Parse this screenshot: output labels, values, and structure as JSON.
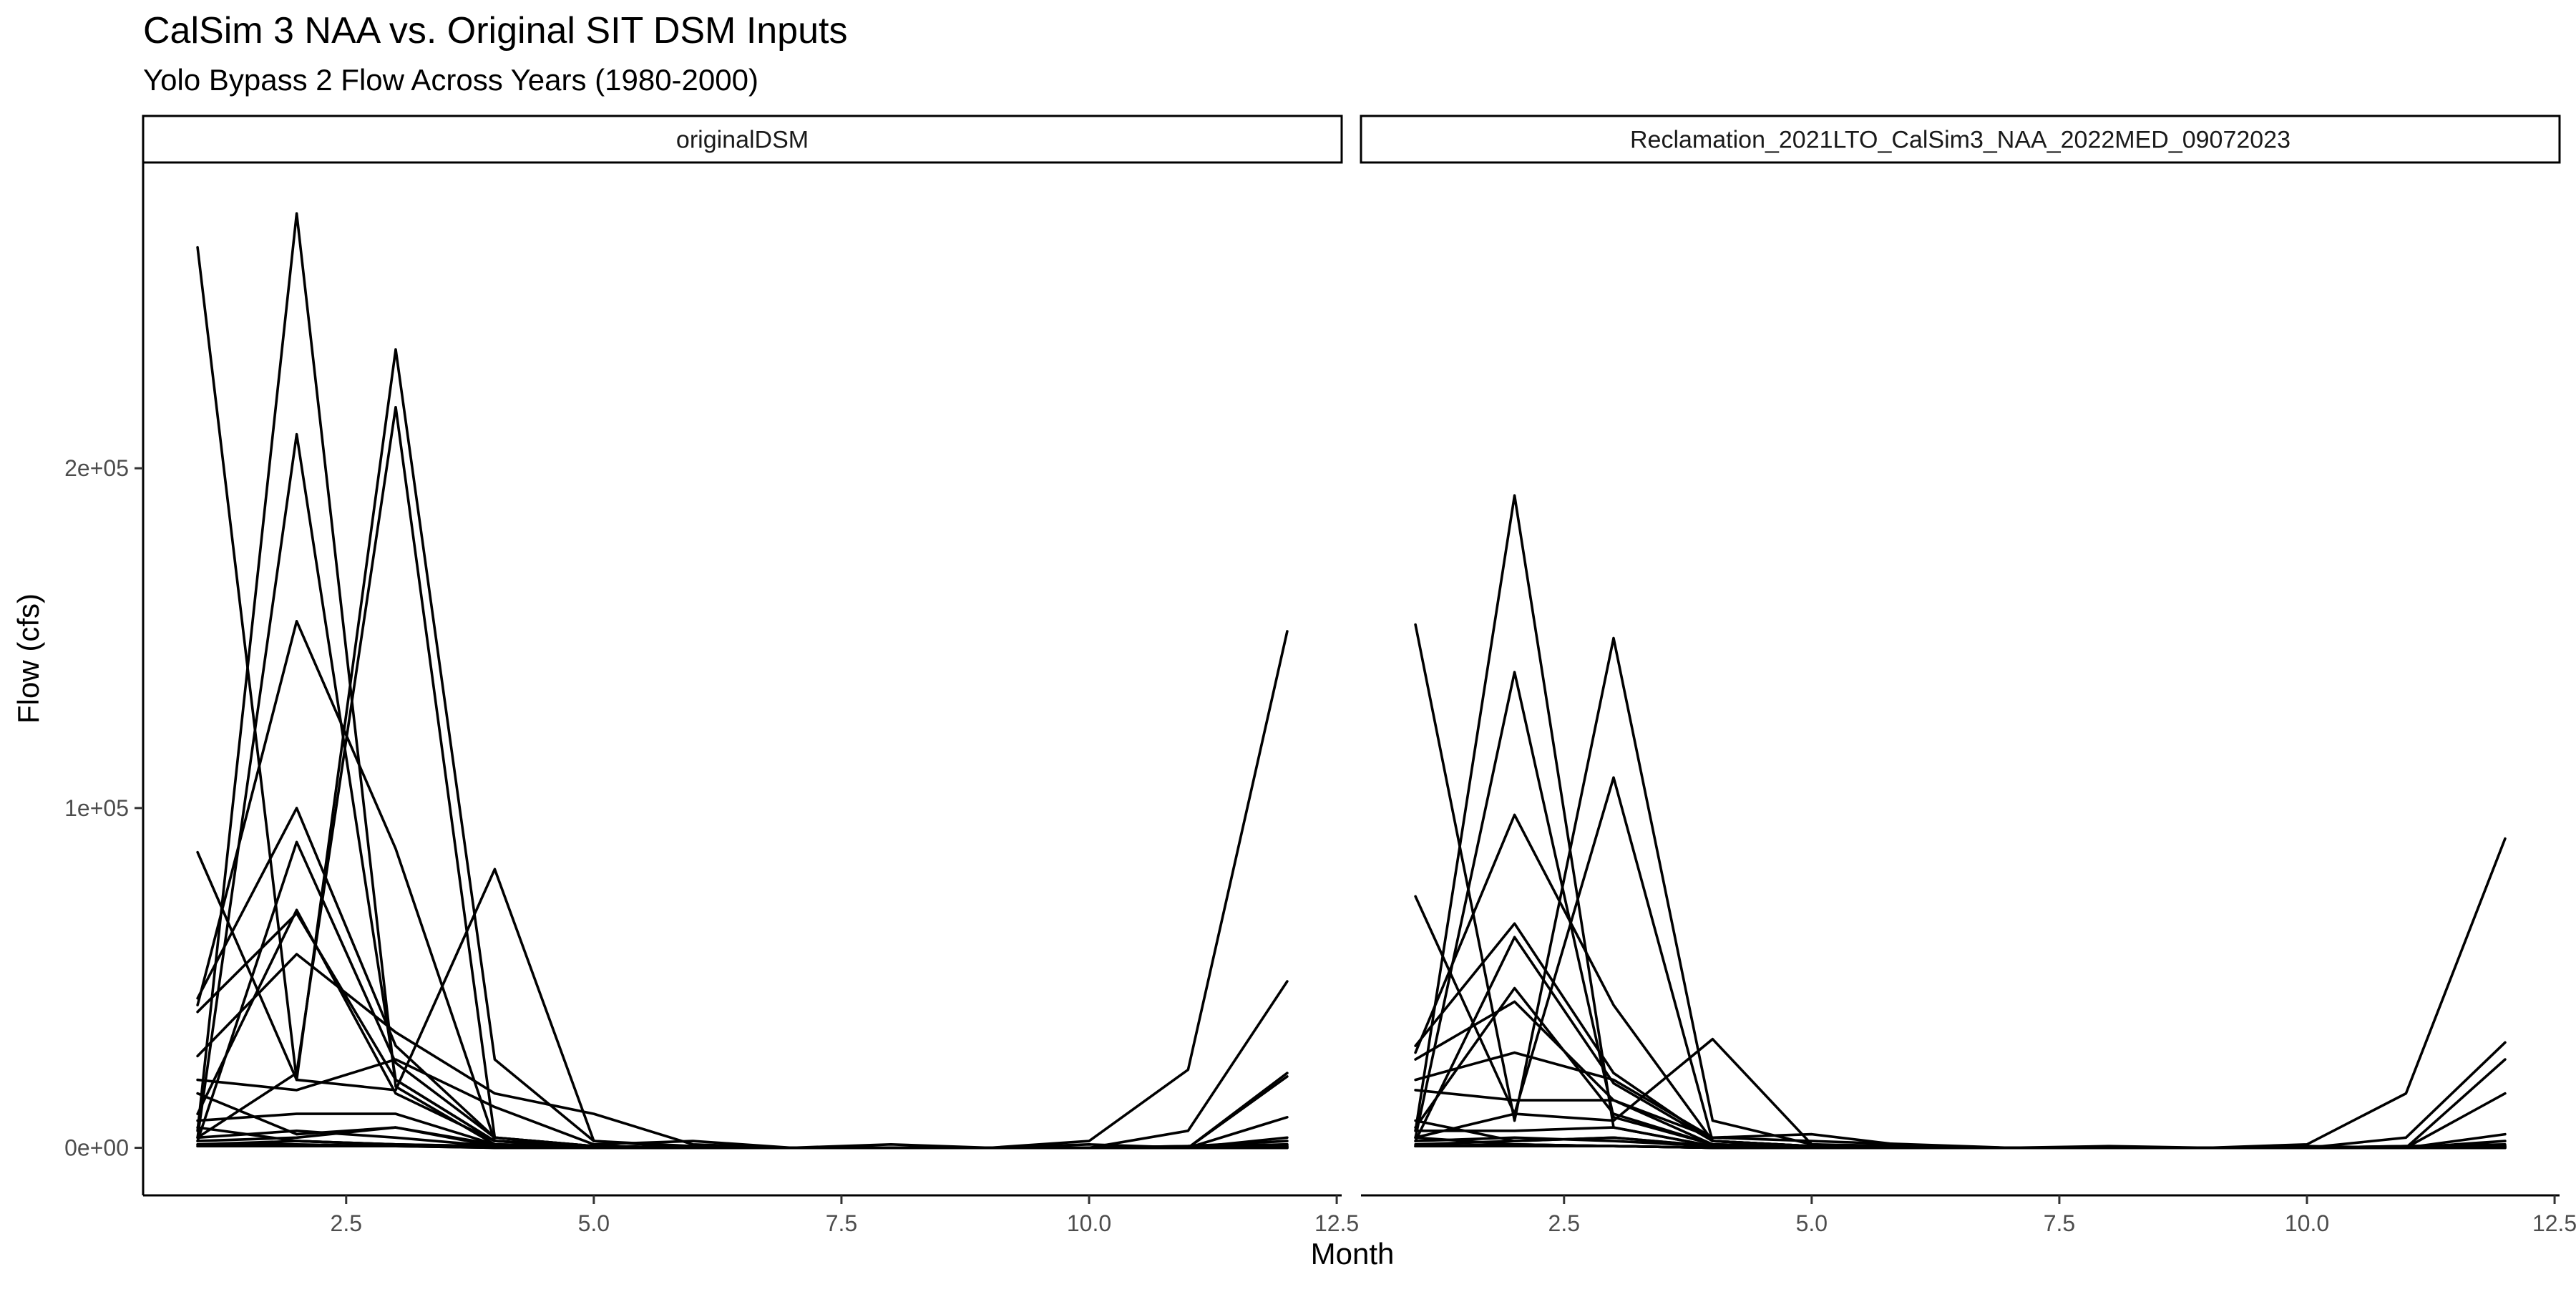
{
  "chart_data": {
    "type": "line",
    "title": "CalSim 3 NAA vs. Original SIT DSM Inputs",
    "subtitle": "Yolo Bypass 2 Flow Across Years (1980-2000)",
    "xlabel": "Month",
    "ylabel": "Flow (cfs)",
    "xlim": [
      0.45,
      12.55
    ],
    "ylim": [
      -14000,
      290000
    ],
    "x_ticks": [
      2.5,
      5.0,
      7.5,
      10.0,
      12.5
    ],
    "x_tick_labels": [
      "2.5",
      "5.0",
      "7.5",
      "10.0",
      "12.5"
    ],
    "y_ticks": [
      0,
      100000,
      200000
    ],
    "y_tick_labels": [
      "0e+00",
      "1e+05",
      "2e+05"
    ],
    "grid": false,
    "legend": "none",
    "colors": {
      "line": "#000000",
      "strip_border": "#000000",
      "tick_label": "#4d4d4d"
    },
    "panels": [
      {
        "label": "originalDSM",
        "x": [
          1,
          2,
          3,
          4,
          5,
          6,
          7,
          8,
          9,
          10,
          11,
          12
        ],
        "series": [
          {
            "values": [
              265000,
              20000,
              235000,
              26000,
              2000,
              500,
              0,
              0,
              0,
              0,
              500,
              2000
            ]
          },
          {
            "values": [
              5000,
              275000,
              18000,
              1000,
              500,
              0,
              0,
              0,
              0,
              0,
              0,
              1000
            ]
          },
          {
            "values": [
              3000,
              210000,
              20000,
              2000,
              500,
              0,
              0,
              0,
              0,
              0,
              0,
              0
            ]
          },
          {
            "values": [
              42000,
              155000,
              88000,
              2000,
              500,
              0,
              0,
              0,
              0,
              0,
              500,
              1000
            ]
          },
          {
            "values": [
              3000,
              22000,
              218000,
              3000,
              500,
              0,
              0,
              0,
              0,
              0,
              0,
              500
            ]
          },
          {
            "values": [
              44000,
              100000,
              30000,
              3000,
              500,
              0,
              0,
              0,
              0,
              2000,
              23000,
              152000
            ]
          },
          {
            "values": [
              87000,
              20000,
              17000,
              82000,
              2000,
              0,
              0,
              0,
              0,
              0,
              5000,
              49000
            ]
          },
          {
            "values": [
              2000,
              90000,
              25000,
              3000,
              500,
              0,
              0,
              0,
              0,
              0,
              0,
              22000
            ]
          },
          {
            "values": [
              10000,
              70000,
              16000,
              2000,
              500,
              0,
              0,
              0,
              0,
              0,
              0,
              21000
            ]
          },
          {
            "values": [
              40000,
              69000,
              20000,
              2000,
              500,
              0,
              0,
              0,
              0,
              0,
              0,
              9000
            ]
          },
          {
            "values": [
              27000,
              57000,
              34000,
              16000,
              10000,
              1000,
              0,
              0,
              0,
              0,
              0,
              3000
            ]
          },
          {
            "values": [
              20000,
              17000,
              26000,
              12000,
              1000,
              2000,
              0,
              1000,
              0,
              1000,
              0,
              500
            ]
          },
          {
            "values": [
              16000,
              4000,
              6000,
              1000,
              500,
              0,
              0,
              0,
              0,
              0,
              0,
              500
            ]
          },
          {
            "values": [
              8000,
              10000,
              10000,
              1000,
              500,
              0,
              0,
              0,
              0,
              0,
              0,
              500
            ]
          },
          {
            "values": [
              6000,
              2000,
              1000,
              500,
              0,
              0,
              0,
              0,
              0,
              0,
              0,
              0
            ]
          },
          {
            "values": [
              3000,
              5000,
              3000,
              500,
              0,
              0,
              0,
              0,
              0,
              0,
              0,
              0
            ]
          },
          {
            "values": [
              1000,
              2000,
              1000,
              500,
              0,
              0,
              0,
              0,
              0,
              0,
              0,
              0
            ]
          },
          {
            "values": [
              2000,
              3000,
              6000,
              500,
              0,
              0,
              0,
              0,
              0,
              0,
              0,
              0
            ]
          },
          {
            "values": [
              500,
              500,
              500,
              0,
              0,
              0,
              0,
              0,
              0,
              0,
              0,
              0
            ]
          },
          {
            "values": [
              1000,
              1000,
              500,
              0,
              0,
              0,
              0,
              0,
              0,
              0,
              0,
              0
            ]
          },
          {
            "values": [
              500,
              2000,
              1000,
              0,
              0,
              0,
              0,
              0,
              0,
              0,
              0,
              0
            ]
          }
        ]
      },
      {
        "label": "Reclamation_2021LTO_CalSim3_NAA_2022MED_09072023",
        "x": [
          1,
          2,
          3,
          4,
          5,
          6,
          7,
          8,
          9,
          10,
          11,
          12
        ],
        "series": [
          {
            "values": [
              154000,
              8000,
              150000,
              8000,
              1000,
              500,
              0,
              0,
              0,
              0,
              500,
              1000
            ]
          },
          {
            "values": [
              5000,
              192000,
              6000,
              500,
              0,
              0,
              0,
              0,
              0,
              0,
              0,
              500
            ]
          },
          {
            "values": [
              3000,
              140000,
              9000,
              1000,
              500,
              0,
              0,
              0,
              0,
              0,
              0,
              0
            ]
          },
          {
            "values": [
              28000,
              98000,
              42000,
              2000,
              500,
              0,
              0,
              0,
              0,
              0,
              500,
              500
            ]
          },
          {
            "values": [
              3000,
              10000,
              109000,
              2000,
              500,
              0,
              0,
              0,
              0,
              0,
              0,
              500
            ]
          },
          {
            "values": [
              30000,
              66000,
              22000,
              2000,
              500,
              0,
              0,
              0,
              0,
              1000,
              16000,
              91000
            ]
          },
          {
            "values": [
              74000,
              10000,
              8000,
              32000,
              1000,
              0,
              0,
              0,
              0,
              0,
              3000,
              31000
            ]
          },
          {
            "values": [
              2000,
              62000,
              19000,
              2000,
              500,
              0,
              0,
              0,
              0,
              0,
              0,
              26000
            ]
          },
          {
            "values": [
              6000,
              47000,
              10000,
              1000,
              500,
              0,
              0,
              0,
              0,
              0,
              0,
              16000
            ]
          },
          {
            "values": [
              26000,
              43000,
              14000,
              1000,
              500,
              0,
              0,
              0,
              0,
              0,
              0,
              4000
            ]
          },
          {
            "values": [
              20000,
              28000,
              20000,
              3000,
              4000,
              500,
              0,
              0,
              0,
              0,
              0,
              2000
            ]
          },
          {
            "values": [
              17000,
              14000,
              14000,
              3000,
              2000,
              1000,
              0,
              500,
              0,
              500,
              0,
              500
            ]
          },
          {
            "values": [
              8000,
              2000,
              3000,
              500,
              0,
              0,
              0,
              0,
              0,
              0,
              0,
              500
            ]
          },
          {
            "values": [
              5000,
              5000,
              6000,
              500,
              0,
              0,
              0,
              0,
              0,
              0,
              0,
              500
            ]
          },
          {
            "values": [
              3000,
              1000,
              500,
              0,
              0,
              0,
              0,
              0,
              0,
              0,
              0,
              0
            ]
          },
          {
            "values": [
              2000,
              3000,
              2000,
              500,
              0,
              0,
              0,
              0,
              0,
              0,
              0,
              0
            ]
          },
          {
            "values": [
              500,
              1000,
              500,
              0,
              0,
              0,
              0,
              0,
              0,
              0,
              0,
              0
            ]
          },
          {
            "values": [
              1000,
              2000,
              3000,
              500,
              0,
              0,
              0,
              0,
              0,
              0,
              0,
              0
            ]
          },
          {
            "values": [
              500,
              500,
              500,
              0,
              0,
              0,
              0,
              0,
              0,
              0,
              0,
              0
            ]
          },
          {
            "values": [
              500,
              500,
              500,
              0,
              0,
              0,
              0,
              0,
              0,
              0,
              0,
              0
            ]
          },
          {
            "values": [
              500,
              1000,
              500,
              0,
              0,
              0,
              0,
              0,
              0,
              0,
              0,
              0
            ]
          }
        ]
      }
    ]
  }
}
